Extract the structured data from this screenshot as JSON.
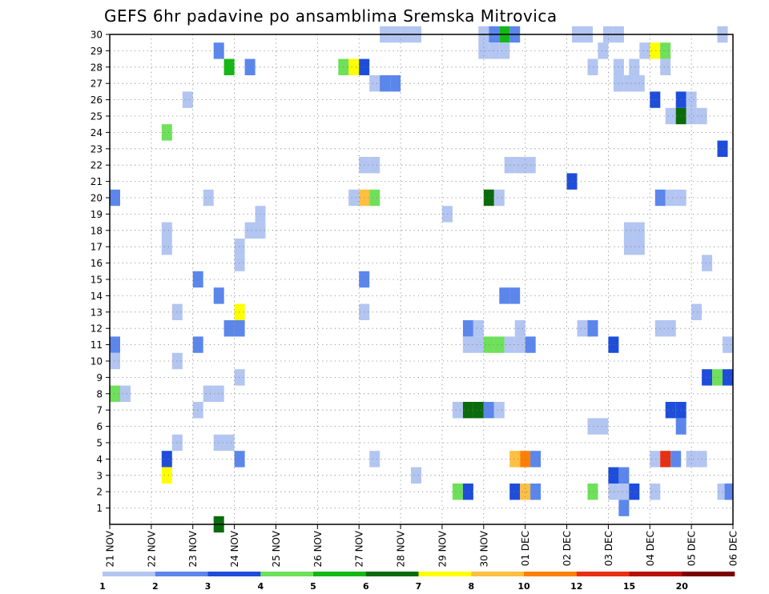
{
  "chart_data": {
    "type": "heatmap",
    "title": "GEFS 6hr padavine po ansamblima Sremska Mitrovica",
    "y_categories": [
      "1",
      "2",
      "3",
      "4",
      "5",
      "6",
      "7",
      "8",
      "9",
      "10",
      "11",
      "12",
      "13",
      "14",
      "15",
      "16",
      "17",
      "18",
      "19",
      "20",
      "21",
      "22",
      "23",
      "24",
      "25",
      "26",
      "27",
      "28",
      "29",
      "30"
    ],
    "x_tick_labels": [
      "21 NOV",
      "22 NOV",
      "23 NOV",
      "24 NOV",
      "25 NOV",
      "26 NOV",
      "27 NOV",
      "28 NOV",
      "29 NOV",
      "30 NOV",
      "01 DEC",
      "02 DEC",
      "03 DEC",
      "04 DEC",
      "05 DEC",
      "06 DEC"
    ],
    "x_slots_per_day": 4,
    "x_range_slots": [
      0,
      60
    ],
    "grid": true,
    "colorbar": {
      "levels": [
        "1",
        "2",
        "3",
        "4",
        "5",
        "6",
        "7",
        "8",
        "10",
        "12",
        "15",
        "20"
      ],
      "colors": [
        "#b3c5f1",
        "#5b86ec",
        "#1e4ddb",
        "#6ee05a",
        "#14b814",
        "#0a6b0a",
        "#ffff00",
        "#ffbf40",
        "#ff8000",
        "#e83010",
        "#b81008",
        "#7a0000"
      ]
    },
    "cells": [
      {
        "m": 30,
        "s": 26.5,
        "c": 1
      },
      {
        "m": 30,
        "s": 27.5,
        "c": 1
      },
      {
        "m": 30,
        "s": 28.5,
        "c": 1
      },
      {
        "m": 30,
        "s": 29.5,
        "c": 1
      },
      {
        "m": 30,
        "s": 36,
        "c": 1
      },
      {
        "m": 30,
        "s": 37,
        "c": 2
      },
      {
        "m": 30,
        "s": 38,
        "c": 5
      },
      {
        "m": 30,
        "s": 39,
        "c": 2
      },
      {
        "m": 30,
        "s": 45,
        "c": 1
      },
      {
        "m": 30,
        "s": 46,
        "c": 1
      },
      {
        "m": 30,
        "s": 48,
        "c": 1
      },
      {
        "m": 30,
        "s": 49,
        "c": 1
      },
      {
        "m": 30,
        "s": 59,
        "c": 1
      },
      {
        "m": 29,
        "s": 10.5,
        "c": 2
      },
      {
        "m": 29,
        "s": 36,
        "c": 1
      },
      {
        "m": 29,
        "s": 37,
        "c": 1
      },
      {
        "m": 29,
        "s": 38,
        "c": 1
      },
      {
        "m": 29,
        "s": 47.5,
        "c": 1
      },
      {
        "m": 29,
        "s": 51.5,
        "c": 1
      },
      {
        "m": 29,
        "s": 52.5,
        "c": 7
      },
      {
        "m": 29,
        "s": 53.5,
        "c": 4
      },
      {
        "m": 28,
        "s": 11.5,
        "c": 5
      },
      {
        "m": 28,
        "s": 13.5,
        "c": 2
      },
      {
        "m": 28,
        "s": 22.5,
        "c": 4
      },
      {
        "m": 28,
        "s": 23.5,
        "c": 7
      },
      {
        "m": 28,
        "s": 24.5,
        "c": 3
      },
      {
        "m": 28,
        "s": 46.5,
        "c": 1
      },
      {
        "m": 28,
        "s": 49,
        "c": 1
      },
      {
        "m": 28,
        "s": 50.5,
        "c": 1
      },
      {
        "m": 28,
        "s": 53.5,
        "c": 1
      },
      {
        "m": 27,
        "s": 25.5,
        "c": 1
      },
      {
        "m": 27,
        "s": 26.5,
        "c": 2
      },
      {
        "m": 27,
        "s": 27.5,
        "c": 2
      },
      {
        "m": 27,
        "s": 49,
        "c": 1
      },
      {
        "m": 27,
        "s": 50,
        "c": 1
      },
      {
        "m": 27,
        "s": 51,
        "c": 1
      },
      {
        "m": 26,
        "s": 7.5,
        "c": 1
      },
      {
        "m": 26,
        "s": 52.5,
        "c": 3
      },
      {
        "m": 26,
        "s": 55,
        "c": 3
      },
      {
        "m": 26,
        "s": 56,
        "c": 1
      },
      {
        "m": 25,
        "s": 54,
        "c": 1
      },
      {
        "m": 25,
        "s": 55,
        "c": 6
      },
      {
        "m": 25,
        "s": 56,
        "c": 1
      },
      {
        "m": 25,
        "s": 57,
        "c": 1
      },
      {
        "m": 24,
        "s": 5.5,
        "c": 4
      },
      {
        "m": 23,
        "s": 59,
        "c": 3
      },
      {
        "m": 22,
        "s": 24.5,
        "c": 1
      },
      {
        "m": 22,
        "s": 25.5,
        "c": 1
      },
      {
        "m": 22,
        "s": 38.5,
        "c": 1
      },
      {
        "m": 22,
        "s": 39.5,
        "c": 1
      },
      {
        "m": 22,
        "s": 40.5,
        "c": 1
      },
      {
        "m": 21,
        "s": 44.5,
        "c": 3
      },
      {
        "m": 20,
        "s": 0.5,
        "c": 2
      },
      {
        "m": 20,
        "s": 9.5,
        "c": 1
      },
      {
        "m": 20,
        "s": 23.5,
        "c": 1
      },
      {
        "m": 20,
        "s": 24.5,
        "c": 8
      },
      {
        "m": 20,
        "s": 25.5,
        "c": 4
      },
      {
        "m": 20,
        "s": 36.5,
        "c": 6
      },
      {
        "m": 20,
        "s": 37.5,
        "c": 1
      },
      {
        "m": 20,
        "s": 53,
        "c": 2
      },
      {
        "m": 20,
        "s": 54,
        "c": 1
      },
      {
        "m": 20,
        "s": 55,
        "c": 1
      },
      {
        "m": 19,
        "s": 14.5,
        "c": 1
      },
      {
        "m": 19,
        "s": 32.5,
        "c": 1
      },
      {
        "m": 18,
        "s": 5.5,
        "c": 1
      },
      {
        "m": 18,
        "s": 13.5,
        "c": 1
      },
      {
        "m": 18,
        "s": 14.5,
        "c": 1
      },
      {
        "m": 18,
        "s": 50,
        "c": 1
      },
      {
        "m": 18,
        "s": 51,
        "c": 1
      },
      {
        "m": 17,
        "s": 5.5,
        "c": 1
      },
      {
        "m": 17,
        "s": 12.5,
        "c": 1
      },
      {
        "m": 17,
        "s": 50,
        "c": 1
      },
      {
        "m": 17,
        "s": 51,
        "c": 1
      },
      {
        "m": 16,
        "s": 12.5,
        "c": 1
      },
      {
        "m": 16,
        "s": 57.5,
        "c": 1
      },
      {
        "m": 15,
        "s": 8.5,
        "c": 2
      },
      {
        "m": 15,
        "s": 24.5,
        "c": 2
      },
      {
        "m": 14,
        "s": 10.5,
        "c": 2
      },
      {
        "m": 14,
        "s": 38,
        "c": 2
      },
      {
        "m": 14,
        "s": 39,
        "c": 2
      },
      {
        "m": 13,
        "s": 6.5,
        "c": 1
      },
      {
        "m": 13,
        "s": 12.5,
        "c": 7
      },
      {
        "m": 13,
        "s": 24.5,
        "c": 1
      },
      {
        "m": 13,
        "s": 56.5,
        "c": 1
      },
      {
        "m": 12,
        "s": 11.5,
        "c": 2
      },
      {
        "m": 12,
        "s": 12.5,
        "c": 2
      },
      {
        "m": 12,
        "s": 34.5,
        "c": 2
      },
      {
        "m": 12,
        "s": 35.5,
        "c": 1
      },
      {
        "m": 12,
        "s": 39.5,
        "c": 1
      },
      {
        "m": 12,
        "s": 45.5,
        "c": 1
      },
      {
        "m": 12,
        "s": 46.5,
        "c": 2
      },
      {
        "m": 12,
        "s": 53,
        "c": 1
      },
      {
        "m": 12,
        "s": 54,
        "c": 1
      },
      {
        "m": 11,
        "s": 0.5,
        "c": 2
      },
      {
        "m": 11,
        "s": 8.5,
        "c": 2
      },
      {
        "m": 11,
        "s": 34.5,
        "c": 1
      },
      {
        "m": 11,
        "s": 35.5,
        "c": 1
      },
      {
        "m": 11,
        "s": 36.5,
        "c": 4
      },
      {
        "m": 11,
        "s": 37.5,
        "c": 4
      },
      {
        "m": 11,
        "s": 38.5,
        "c": 1
      },
      {
        "m": 11,
        "s": 39.5,
        "c": 1
      },
      {
        "m": 11,
        "s": 40.5,
        "c": 2
      },
      {
        "m": 11,
        "s": 48.5,
        "c": 3
      },
      {
        "m": 11,
        "s": 59.5,
        "c": 1
      },
      {
        "m": 10,
        "s": 0.5,
        "c": 1
      },
      {
        "m": 10,
        "s": 6.5,
        "c": 1
      },
      {
        "m": 9,
        "s": 12.5,
        "c": 1
      },
      {
        "m": 9,
        "s": 57.5,
        "c": 3
      },
      {
        "m": 9,
        "s": 58.5,
        "c": 4
      },
      {
        "m": 9,
        "s": 59.5,
        "c": 3
      },
      {
        "m": 8,
        "s": 0.5,
        "c": 4
      },
      {
        "m": 8,
        "s": 1.5,
        "c": 1
      },
      {
        "m": 8,
        "s": 9.5,
        "c": 1
      },
      {
        "m": 8,
        "s": 10.5,
        "c": 1
      },
      {
        "m": 7,
        "s": 8.5,
        "c": 1
      },
      {
        "m": 7,
        "s": 33.5,
        "c": 1
      },
      {
        "m": 7,
        "s": 34.5,
        "c": 6
      },
      {
        "m": 7,
        "s": 35.5,
        "c": 6
      },
      {
        "m": 7,
        "s": 36.5,
        "c": 2
      },
      {
        "m": 7,
        "s": 37.5,
        "c": 1
      },
      {
        "m": 7,
        "s": 54,
        "c": 3
      },
      {
        "m": 7,
        "s": 55,
        "c": 3
      },
      {
        "m": 6,
        "s": 46.5,
        "c": 1
      },
      {
        "m": 6,
        "s": 47.5,
        "c": 1
      },
      {
        "m": 6,
        "s": 55,
        "c": 2
      },
      {
        "m": 5,
        "s": 6.5,
        "c": 1
      },
      {
        "m": 5,
        "s": 10.5,
        "c": 1
      },
      {
        "m": 5,
        "s": 11.5,
        "c": 1
      },
      {
        "m": 4,
        "s": 5.5,
        "c": 3
      },
      {
        "m": 4,
        "s": 12.5,
        "c": 2
      },
      {
        "m": 4,
        "s": 25.5,
        "c": 1
      },
      {
        "m": 4,
        "s": 39,
        "c": 8
      },
      {
        "m": 4,
        "s": 40,
        "c": 9
      },
      {
        "m": 4,
        "s": 41,
        "c": 2
      },
      {
        "m": 4,
        "s": 52.5,
        "c": 1
      },
      {
        "m": 4,
        "s": 53.5,
        "c": 10
      },
      {
        "m": 4,
        "s": 54.5,
        "c": 2
      },
      {
        "m": 4,
        "s": 56,
        "c": 1
      },
      {
        "m": 4,
        "s": 57,
        "c": 1
      },
      {
        "m": 3,
        "s": 5.5,
        "c": 7
      },
      {
        "m": 3,
        "s": 29.5,
        "c": 1
      },
      {
        "m": 3,
        "s": 48.5,
        "c": 3
      },
      {
        "m": 3,
        "s": 49.5,
        "c": 2
      },
      {
        "m": 2,
        "s": 33.5,
        "c": 4
      },
      {
        "m": 2,
        "s": 34.5,
        "c": 3
      },
      {
        "m": 2,
        "s": 39,
        "c": 3
      },
      {
        "m": 2,
        "s": 40,
        "c": 8
      },
      {
        "m": 2,
        "s": 41,
        "c": 2
      },
      {
        "m": 2,
        "s": 46.5,
        "c": 4
      },
      {
        "m": 2,
        "s": 48.5,
        "c": 1
      },
      {
        "m": 2,
        "s": 49.5,
        "c": 1
      },
      {
        "m": 2,
        "s": 50.5,
        "c": 3
      },
      {
        "m": 2,
        "s": 52.5,
        "c": 1
      },
      {
        "m": 2,
        "s": 59,
        "c": 1
      },
      {
        "m": 2,
        "s": 59.7,
        "c": 2
      },
      {
        "m": 1,
        "s": 49.5,
        "c": 2
      },
      {
        "m": 0,
        "s": 10.5,
        "c": 6
      }
    ]
  }
}
